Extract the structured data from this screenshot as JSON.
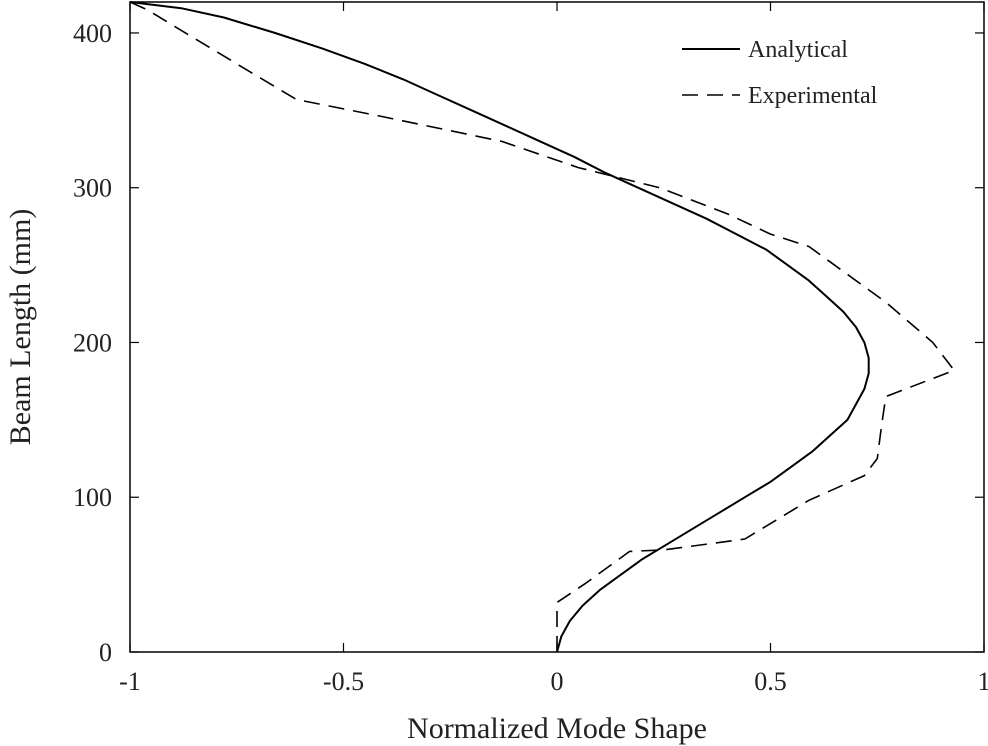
{
  "chart_data": {
    "type": "line",
    "title": "",
    "xlabel": "Normalized Mode Shape",
    "ylabel": "Beam Length (mm)",
    "xlim": [
      -1,
      1
    ],
    "ylim": [
      0,
      420
    ],
    "x_ticks": [
      -1,
      -0.5,
      0,
      0.5,
      1
    ],
    "x_tick_labels": [
      "-1",
      "-0.5",
      "0",
      "0.5",
      "1"
    ],
    "y_ticks": [
      0,
      100,
      200,
      300,
      400
    ],
    "y_tick_labels": [
      "0",
      "100",
      "200",
      "300",
      "400"
    ],
    "grid": false,
    "legend_position": "top-right",
    "series": [
      {
        "name": "Analytical",
        "style": "solid",
        "color": "#000000",
        "points": [
          [
            0.0,
            0
          ],
          [
            0.01,
            10
          ],
          [
            0.03,
            20
          ],
          [
            0.06,
            30
          ],
          [
            0.1,
            40
          ],
          [
            0.15,
            50
          ],
          [
            0.2,
            60
          ],
          [
            0.26,
            70
          ],
          [
            0.32,
            80
          ],
          [
            0.38,
            90
          ],
          [
            0.44,
            100
          ],
          [
            0.5,
            110
          ],
          [
            0.55,
            120
          ],
          [
            0.6,
            130
          ],
          [
            0.64,
            140
          ],
          [
            0.68,
            150
          ],
          [
            0.7,
            160
          ],
          [
            0.72,
            170
          ],
          [
            0.73,
            180
          ],
          [
            0.73,
            190
          ],
          [
            0.72,
            200
          ],
          [
            0.7,
            210
          ],
          [
            0.67,
            220
          ],
          [
            0.63,
            230
          ],
          [
            0.59,
            240
          ],
          [
            0.54,
            250
          ],
          [
            0.49,
            260
          ],
          [
            0.42,
            270
          ],
          [
            0.35,
            280
          ],
          [
            0.27,
            290
          ],
          [
            0.19,
            300
          ],
          [
            0.11,
            310
          ],
          [
            0.04,
            320
          ],
          [
            -0.04,
            330
          ],
          [
            -0.12,
            340
          ],
          [
            -0.2,
            350
          ],
          [
            -0.28,
            360
          ],
          [
            -0.36,
            370
          ],
          [
            -0.45,
            380
          ],
          [
            -0.55,
            390
          ],
          [
            -0.66,
            400
          ],
          [
            -0.78,
            410
          ],
          [
            -0.88,
            416
          ],
          [
            -1.0,
            420
          ]
        ]
      },
      {
        "name": "Experimental",
        "style": "dashed",
        "color": "#000000",
        "points": [
          [
            0.0,
            0
          ],
          [
            0.0,
            32
          ],
          [
            0.07,
            45
          ],
          [
            0.17,
            65
          ],
          [
            0.25,
            66
          ],
          [
            0.44,
            73
          ],
          [
            0.59,
            98
          ],
          [
            0.72,
            114
          ],
          [
            0.75,
            125
          ],
          [
            0.76,
            146
          ],
          [
            0.77,
            165
          ],
          [
            0.93,
            182
          ],
          [
            0.88,
            200
          ],
          [
            0.77,
            226
          ],
          [
            0.59,
            262
          ],
          [
            0.5,
            270
          ],
          [
            0.4,
            283
          ],
          [
            0.24,
            300
          ],
          [
            0.05,
            313
          ],
          [
            -0.13,
            330
          ],
          [
            -0.41,
            346
          ],
          [
            -0.61,
            357
          ],
          [
            -0.72,
            375
          ],
          [
            -0.84,
            395
          ],
          [
            -0.96,
            415
          ],
          [
            -1.0,
            420
          ]
        ]
      }
    ]
  }
}
